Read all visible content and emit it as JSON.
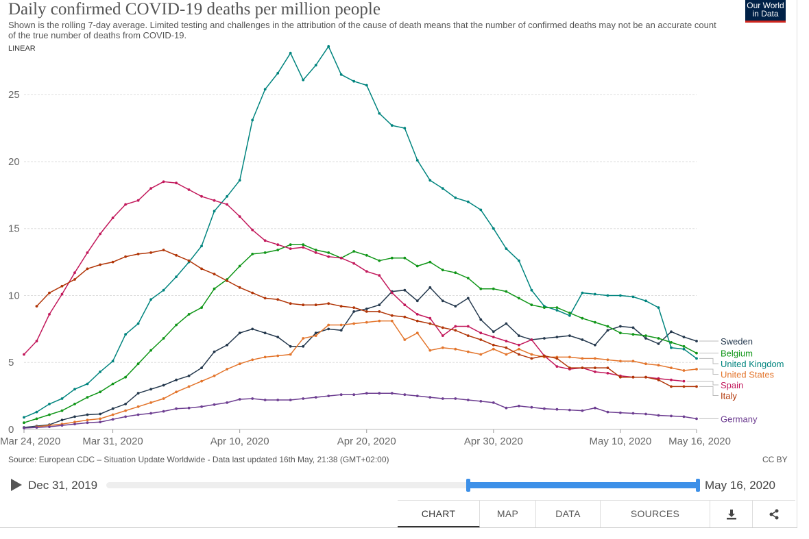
{
  "header": {
    "title": "Daily confirmed COVID-19 deaths per million people",
    "subtitle": "Shown is the rolling 7-day average. Limited testing and challenges in the attribution of the cause of death means that the number of confirmed deaths may not be an accurate count of the true number of deaths from COVID-19.",
    "scale_toggle": "LINEAR",
    "logo_line1": "Our World",
    "logo_line2": "in Data"
  },
  "footer": {
    "source": "Source: European CDC – Situation Update Worldwide - Data last updated 16th May, 21:38 (GMT+02:00)",
    "license": "CC BY"
  },
  "timeline": {
    "start_label": "Dec 31, 2019",
    "end_label": "May 16, 2020"
  },
  "tabs": [
    {
      "label": "CHART",
      "active": true
    },
    {
      "label": "MAP",
      "active": false
    },
    {
      "label": "DATA",
      "active": false
    },
    {
      "label": "SOURCES",
      "active": false
    }
  ],
  "icons": [
    "download-icon",
    "share-icon"
  ],
  "chart_data": {
    "type": "line",
    "x_type": "date",
    "x_start": "2020-03-24",
    "x_end": "2020-05-16",
    "x_ticks": [
      {
        "date": "2020-03-24",
        "label": "Mar 24, 2020"
      },
      {
        "date": "2020-03-31",
        "label": "Mar 31, 2020"
      },
      {
        "date": "2020-04-10",
        "label": "Apr 10, 2020"
      },
      {
        "date": "2020-04-20",
        "label": "Apr 20, 2020"
      },
      {
        "date": "2020-04-30",
        "label": "Apr 30, 2020"
      },
      {
        "date": "2020-05-10",
        "label": "May 10, 2020"
      },
      {
        "date": "2020-05-16",
        "label": "May 16, 2020"
      }
    ],
    "y_ticks": [
      0,
      5,
      10,
      15,
      20,
      25
    ],
    "ylim": [
      0,
      29
    ],
    "grid": "horizontal dashed",
    "legend": "right, labels at line ends",
    "series": [
      {
        "name": "Sweden",
        "color": "#24384d",
        "end_date": "2020-05-16",
        "values": [
          0.15,
          0.25,
          0.35,
          0.7,
          0.95,
          1.1,
          1.15,
          1.55,
          1.9,
          2.7,
          3.0,
          3.3,
          3.7,
          4.0,
          4.6,
          5.8,
          6.3,
          7.2,
          7.5,
          7.2,
          6.9,
          6.2,
          6.2,
          7.2,
          7.5,
          7.4,
          8.8,
          9.0,
          9.3,
          10.3,
          10.4,
          9.6,
          10.6,
          9.6,
          9.2,
          9.8,
          8.2,
          7.3,
          7.9,
          7.0,
          6.7,
          6.8,
          6.9,
          7.0,
          6.7,
          6.3,
          7.4,
          7.7,
          7.6,
          6.8,
          6.4,
          7.3,
          6.9,
          6.6
        ]
      },
      {
        "name": "United Kingdom",
        "color": "#00847e",
        "end_date": "2020-05-16",
        "values": [
          0.9,
          1.3,
          1.9,
          2.3,
          3.0,
          3.4,
          4.3,
          5.1,
          7.1,
          7.9,
          9.7,
          10.4,
          11.4,
          12.5,
          13.7,
          16.3,
          17.4,
          18.6,
          23.1,
          25.4,
          26.6,
          28.1,
          26.1,
          27.2,
          28.6,
          26.5,
          26.0,
          25.7,
          23.6,
          22.7,
          22.5,
          20.1,
          18.6,
          18.0,
          17.3,
          17.0,
          16.4,
          15.0,
          13.5,
          12.6,
          10.4,
          9.2,
          8.9,
          8.5,
          10.2,
          10.1,
          10.0,
          10.0,
          9.9,
          9.6,
          9.1,
          6.1,
          6.0,
          5.3
        ]
      },
      {
        "name": "Belgium",
        "color": "#109618",
        "end_date": "2020-05-16",
        "values": [
          0.5,
          0.8,
          1.1,
          1.4,
          1.9,
          2.4,
          2.8,
          3.4,
          3.9,
          4.9,
          5.9,
          6.8,
          7.8,
          8.6,
          9.1,
          10.5,
          11.2,
          12.2,
          13.1,
          13.2,
          13.4,
          13.8,
          13.8,
          13.4,
          13.2,
          12.8,
          13.3,
          13.0,
          12.6,
          12.8,
          12.8,
          12.2,
          12.5,
          11.9,
          11.7,
          11.3,
          10.5,
          10.5,
          10.3,
          9.8,
          9.3,
          9.1,
          9.1,
          8.7,
          8.3,
          8.0,
          7.7,
          7.2,
          7.1,
          7.0,
          6.8,
          6.5,
          6.2,
          5.7
        ]
      },
      {
        "name": "United States",
        "color": "#e3752c",
        "end_date": "2020-05-16",
        "values": [
          0.2,
          0.3,
          0.4,
          0.55,
          0.7,
          0.8,
          1.1,
          1.4,
          1.7,
          2.0,
          2.3,
          2.8,
          3.2,
          3.6,
          4.0,
          4.5,
          4.9,
          5.2,
          5.4,
          5.5,
          5.6,
          6.8,
          7.0,
          7.8,
          7.8,
          7.9,
          8.0,
          8.1,
          8.1,
          6.7,
          7.2,
          5.9,
          6.1,
          6.0,
          5.8,
          5.6,
          6.0,
          5.6,
          6.0,
          5.6,
          5.4,
          5.4,
          5.4,
          5.3,
          5.3,
          5.2,
          5.1,
          5.1,
          4.9,
          4.8,
          4.6,
          4.4,
          4.5
        ]
      },
      {
        "name": "Spain",
        "color": "#c2185b",
        "end_date": "2020-05-15",
        "values": [
          5.6,
          6.6,
          8.6,
          10.1,
          11.7,
          13.2,
          14.6,
          15.8,
          16.8,
          17.1,
          18.0,
          18.5,
          18.4,
          17.9,
          17.4,
          17.1,
          16.8,
          15.9,
          14.9,
          14.1,
          13.8,
          13.5,
          13.6,
          13.2,
          12.9,
          12.8,
          12.4,
          11.8,
          11.5,
          10.2,
          9.3,
          8.6,
          8.3,
          7.0,
          7.7,
          7.7,
          7.2,
          6.9,
          6.6,
          6.3,
          6.7,
          5.5,
          4.7,
          4.5,
          4.6,
          4.3,
          4.2,
          4.0,
          3.9,
          3.9,
          3.8,
          3.7,
          3.6
        ]
      },
      {
        "name": "Italy",
        "color": "#b13507",
        "end_date": "2020-05-16",
        "values": [
          9.2,
          10.2,
          10.7,
          11.2,
          12.0,
          12.3,
          12.5,
          12.9,
          13.1,
          13.2,
          13.4,
          13.0,
          12.6,
          12.0,
          11.6,
          11.1,
          10.6,
          10.2,
          9.8,
          9.7,
          9.4,
          9.3,
          9.3,
          9.4,
          9.2,
          9.1,
          8.8,
          8.8,
          8.5,
          8.4,
          8.1,
          7.9,
          7.6,
          7.4,
          7.0,
          6.7,
          6.3,
          6.1,
          5.6,
          5.3,
          5.5,
          5.3,
          4.6,
          4.6,
          4.6,
          4.6,
          3.9,
          3.9,
          3.9,
          3.7,
          3.2,
          3.2,
          3.2
        ]
      },
      {
        "name": "Germany",
        "color": "#6d3e91",
        "end_date": "2020-05-16",
        "values": [
          0.1,
          0.15,
          0.2,
          0.3,
          0.4,
          0.5,
          0.55,
          0.75,
          0.95,
          1.1,
          1.2,
          1.35,
          1.55,
          1.6,
          1.7,
          1.85,
          2.0,
          2.25,
          2.3,
          2.2,
          2.2,
          2.2,
          2.3,
          2.4,
          2.5,
          2.6,
          2.6,
          2.7,
          2.7,
          2.7,
          2.6,
          2.5,
          2.4,
          2.3,
          2.3,
          2.2,
          2.1,
          2.0,
          1.6,
          1.75,
          1.65,
          1.55,
          1.5,
          1.45,
          1.4,
          1.6,
          1.3,
          1.25,
          1.2,
          1.15,
          1.05,
          1.0,
          0.95,
          0.8
        ]
      }
    ]
  }
}
